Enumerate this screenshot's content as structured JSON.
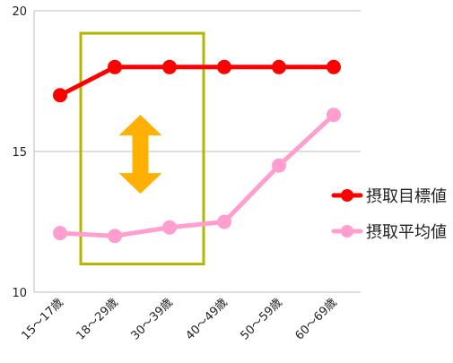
{
  "chart_data": {
    "type": "line",
    "title": "",
    "xlabel": "",
    "ylabel": "",
    "categories": [
      "15～17歳",
      "18～29歳",
      "30～39歳",
      "40～49歳",
      "50～59歳",
      "60～69歳"
    ],
    "ylim": [
      10,
      20
    ],
    "yticks": [
      10,
      15,
      20
    ],
    "grid": true,
    "legend_position": "right",
    "series": [
      {
        "name": "摂取目標値",
        "color": "#ff0000",
        "values": [
          17,
          18,
          18,
          18,
          18,
          18
        ]
      },
      {
        "name": "摂取平均値",
        "color": "#ff9ecf",
        "values": [
          12.1,
          12.0,
          12.3,
          12.5,
          14.5,
          16.3
        ]
      }
    ],
    "annotations": {
      "highlight_box": {
        "from_category": "18～29歳",
        "to_category": "30～39歳",
        "y_range": [
          11,
          19.2
        ],
        "color": "#b5b500"
      },
      "double_arrow": {
        "category_between": [
          "18～29歳",
          "30～39歳"
        ],
        "y_range": [
          13.5,
          16.3
        ],
        "color": "#ffb000"
      }
    }
  }
}
